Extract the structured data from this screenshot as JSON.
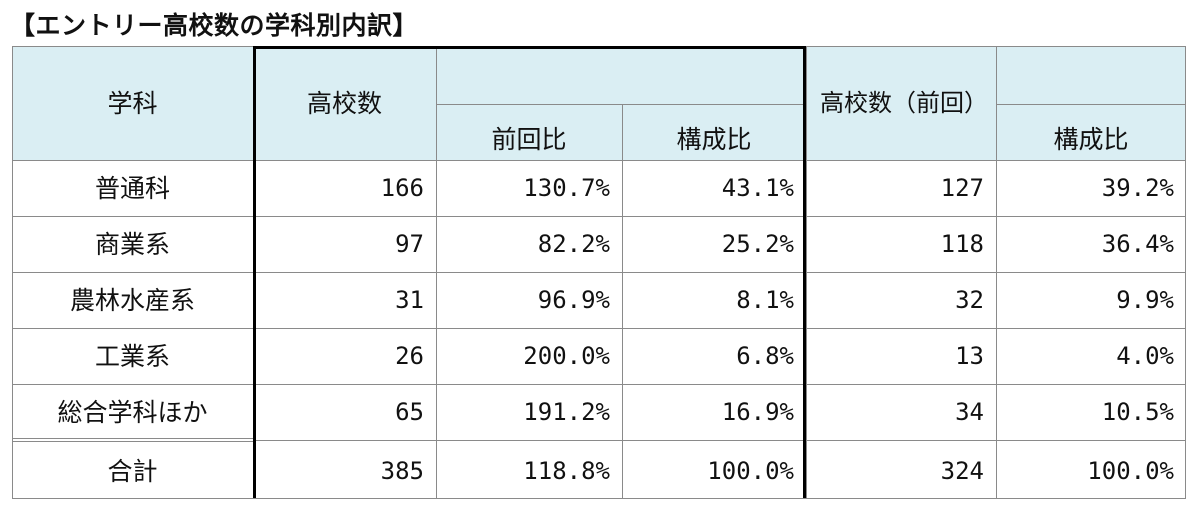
{
  "title": "【エントリー高校数の学科別内訳】",
  "header": {
    "dept": "学科",
    "schools": "高校数",
    "yoy": "前回比",
    "share": "構成比",
    "prev_schools": "高校数（前回）",
    "prev_share": "構成比"
  },
  "rows": [
    {
      "dept": "普通科",
      "schools": "166",
      "yoy": "130.7%",
      "share": "43.1%",
      "prev_schools": "127",
      "prev_share": "39.2%"
    },
    {
      "dept": "商業系",
      "schools": "97",
      "yoy": "82.2%",
      "share": "25.2%",
      "prev_schools": "118",
      "prev_share": "36.4%"
    },
    {
      "dept": "農林水産系",
      "schools": "31",
      "yoy": "96.9%",
      "share": "8.1%",
      "prev_schools": "32",
      "prev_share": "9.9%"
    },
    {
      "dept": "工業系",
      "schools": "26",
      "yoy": "200.0%",
      "share": "6.8%",
      "prev_schools": "13",
      "prev_share": "4.0%"
    },
    {
      "dept": "総合学科ほか",
      "schools": "65",
      "yoy": "191.2%",
      "share": "16.9%",
      "prev_schools": "34",
      "prev_share": "10.5%"
    }
  ],
  "total": {
    "dept": "合計",
    "schools": "385",
    "yoy": "118.8%",
    "share": "100.0%",
    "prev_schools": "324",
    "prev_share": "100.0%"
  },
  "colors": {
    "header_bg": "#daeef3",
    "grid": "#8a8a8a",
    "emphasis_border": "#000000"
  }
}
